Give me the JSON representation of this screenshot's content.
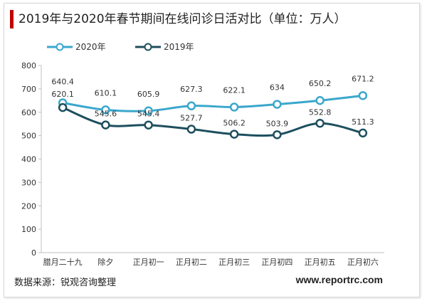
{
  "title": "2019年与2020年春节期间在线问诊日活对比（单位：万人）",
  "source": "数据来源：锐观咨询整理",
  "website": "www.reportrc.com",
  "colors": {
    "title_accent": "#c00000",
    "series_2020": "#3aa7cc",
    "series_2019": "#1d4f5e"
  },
  "chart_data": {
    "type": "line",
    "title": "2019年与2020年春节期间在线问诊日活对比（单位：万人）",
    "categories": [
      "腊月二十九",
      "除夕",
      "正月初一",
      "正月初二",
      "正月初三",
      "正月初四",
      "正月初五",
      "正月初六"
    ],
    "ylim": [
      0,
      800
    ],
    "yticks": [
      0,
      100,
      200,
      300,
      400,
      500,
      600,
      700,
      800
    ],
    "grid": false,
    "legend": "top-left",
    "series": [
      {
        "name": "2020年",
        "values": [
          640.4,
          610.1,
          605.9,
          627.3,
          622.1,
          634,
          650.2,
          671.2
        ],
        "labels": [
          "640.4",
          "610.1",
          "605.9",
          "627.3",
          "622.1",
          "634",
          "650.2",
          "671.2"
        ]
      },
      {
        "name": "2019年",
        "values": [
          620.1,
          545.6,
          545.4,
          527.7,
          506.2,
          503.9,
          552.8,
          511.3
        ],
        "labels": [
          "620.1",
          "545.6",
          "545.4",
          "527.7",
          "506.2",
          "503.9",
          "552.8",
          "511.3"
        ]
      }
    ]
  }
}
